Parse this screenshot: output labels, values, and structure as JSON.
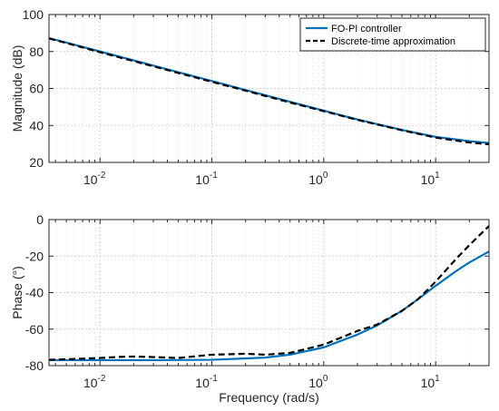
{
  "chart_data": [
    {
      "type": "line",
      "xscale": "log",
      "xlim": [
        0.0035,
        30
      ],
      "ylim": [
        20,
        100
      ],
      "yticks": [
        20,
        40,
        60,
        80,
        100
      ],
      "xticks": [
        0.01,
        0.1,
        1,
        10
      ],
      "xtick_labels": [
        {
          "base": "10",
          "exp": "-2"
        },
        {
          "base": "10",
          "exp": "-1"
        },
        {
          "base": "10",
          "exp": "0"
        },
        {
          "base": "10",
          "exp": "1"
        }
      ],
      "xlabel": "",
      "ylabel": "Magnitude (dB)",
      "grid": true,
      "legend": "top-right",
      "series": [
        {
          "name": "FO-PI controller",
          "color": "#0072bd",
          "style": "solid",
          "x": [
            0.0035,
            0.005,
            0.01,
            0.02,
            0.05,
            0.1,
            0.2,
            0.5,
            1,
            2,
            5,
            10,
            20,
            30
          ],
          "y": [
            87.2,
            84.8,
            80,
            75.2,
            68.8,
            64,
            59.2,
            52.8,
            48,
            43.2,
            37.6,
            33.8,
            31.5,
            30.5
          ]
        },
        {
          "name": "Discrete-time approximation",
          "color": "#000000",
          "style": "dashed",
          "x": [
            0.0035,
            0.005,
            0.01,
            0.02,
            0.05,
            0.1,
            0.2,
            0.5,
            1,
            2,
            5,
            10,
            20,
            30
          ],
          "y": [
            87,
            84.6,
            79.6,
            74.8,
            68.4,
            63.6,
            58.8,
            52.4,
            47.7,
            43,
            37.4,
            33.4,
            30.8,
            29.8
          ]
        }
      ]
    },
    {
      "type": "line",
      "xscale": "log",
      "xlim": [
        0.0035,
        30
      ],
      "ylim": [
        -80,
        0
      ],
      "yticks": [
        -80,
        -60,
        -40,
        -20,
        0
      ],
      "xticks": [
        0.01,
        0.1,
        1,
        10
      ],
      "xtick_labels": [
        {
          "base": "10",
          "exp": "-2"
        },
        {
          "base": "10",
          "exp": "-1"
        },
        {
          "base": "10",
          "exp": "0"
        },
        {
          "base": "10",
          "exp": "1"
        }
      ],
      "xlabel": "Frequency (rad/s)",
      "ylabel": "Phase (°)",
      "grid": true,
      "series": [
        {
          "name": "FO-PI controller",
          "color": "#0072bd",
          "style": "solid",
          "x": [
            0.0035,
            0.01,
            0.03,
            0.1,
            0.3,
            0.5,
            1,
            2,
            3,
            5,
            7,
            10,
            15,
            20,
            30
          ],
          "y": [
            -77,
            -77,
            -77,
            -76.8,
            -75.6,
            -74,
            -70,
            -63,
            -58,
            -50,
            -43.5,
            -36.3,
            -28.5,
            -23.5,
            -17.5
          ]
        },
        {
          "name": "Discrete-time approximation",
          "color": "#000000",
          "style": "dashed",
          "x": [
            0.0035,
            0.005,
            0.01,
            0.015,
            0.02,
            0.03,
            0.05,
            0.1,
            0.2,
            0.3,
            0.5,
            1,
            2,
            3,
            5,
            7,
            10,
            15,
            20,
            30
          ],
          "y": [
            -76.8,
            -76.5,
            -75.8,
            -75.2,
            -75,
            -75.3,
            -75.8,
            -74,
            -73.5,
            -74,
            -73,
            -68.5,
            -61,
            -57.5,
            -50,
            -43.5,
            -34,
            -22,
            -14,
            -3.5
          ]
        }
      ]
    }
  ]
}
